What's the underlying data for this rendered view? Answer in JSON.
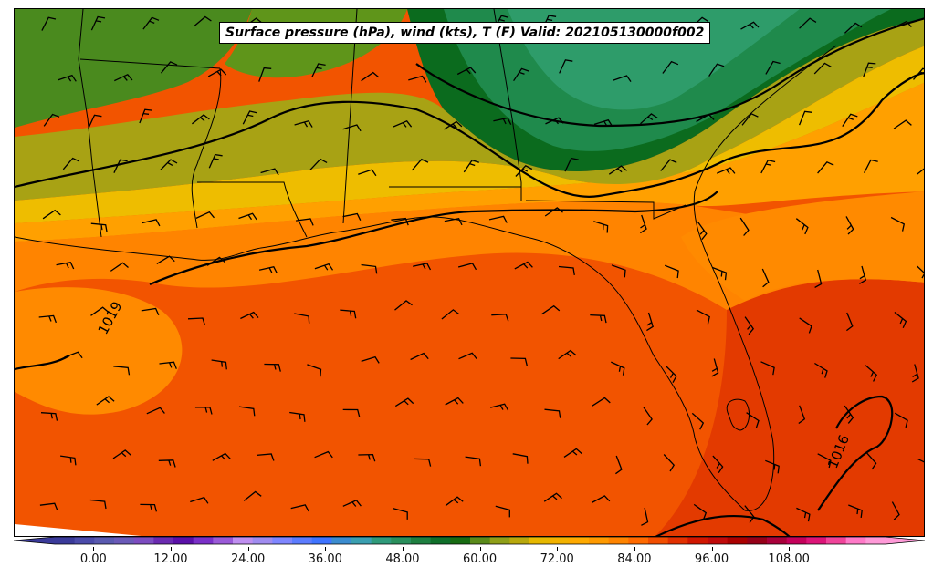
{
  "title": "Surface pressure (hPa), wind (kts), T (F) Valid: 202105130000f002",
  "colorbar": {
    "ticks": [
      "0.00",
      "12.00",
      "24.00",
      "36.00",
      "48.00",
      "60.00",
      "72.00",
      "84.00",
      "96.00",
      "108.00"
    ],
    "min": -6,
    "max": 123,
    "colors": [
      "#3a3a9a",
      "#4b4baa",
      "#5a5ab0",
      "#6a5ab8",
      "#7c4cc0",
      "#6a2ab0",
      "#5a10a8",
      "#7a30c8",
      "#9a5ad8",
      "#bf8ff0",
      "#a08cf0",
      "#7f86ff",
      "#5c7cff",
      "#3f74ff",
      "#3b8ccf",
      "#3a9fb0",
      "#2f9a7a",
      "#2a8f5c",
      "#1e7f40",
      "#0f6f2a",
      "#176b12",
      "#5a8a1a",
      "#8f9f18",
      "#b8a80c",
      "#e6b800",
      "#f2b200",
      "#ffaa00",
      "#ff9a00",
      "#ff8400",
      "#ff6a00",
      "#f24e00",
      "#e23000",
      "#d01600",
      "#c00a0a",
      "#aa0000",
      "#950018",
      "#a8003a",
      "#c4005a",
      "#dc1478",
      "#f0449a",
      "#ff7ac8",
      "#ff9ad8"
    ]
  },
  "contours": {
    "labels": [
      "1019",
      "1016"
    ]
  },
  "region_colors": {
    "dark_green": "#0b6b1e",
    "mid_green": "#1f8a4c",
    "sea_green": "#2e9c6a",
    "olive": "#a8a214",
    "yellow": "#eebd00",
    "light_orange": "#ff9a00",
    "orange": "#ff8400",
    "deep_orange": "#f25400",
    "red_orange": "#e33a00"
  }
}
